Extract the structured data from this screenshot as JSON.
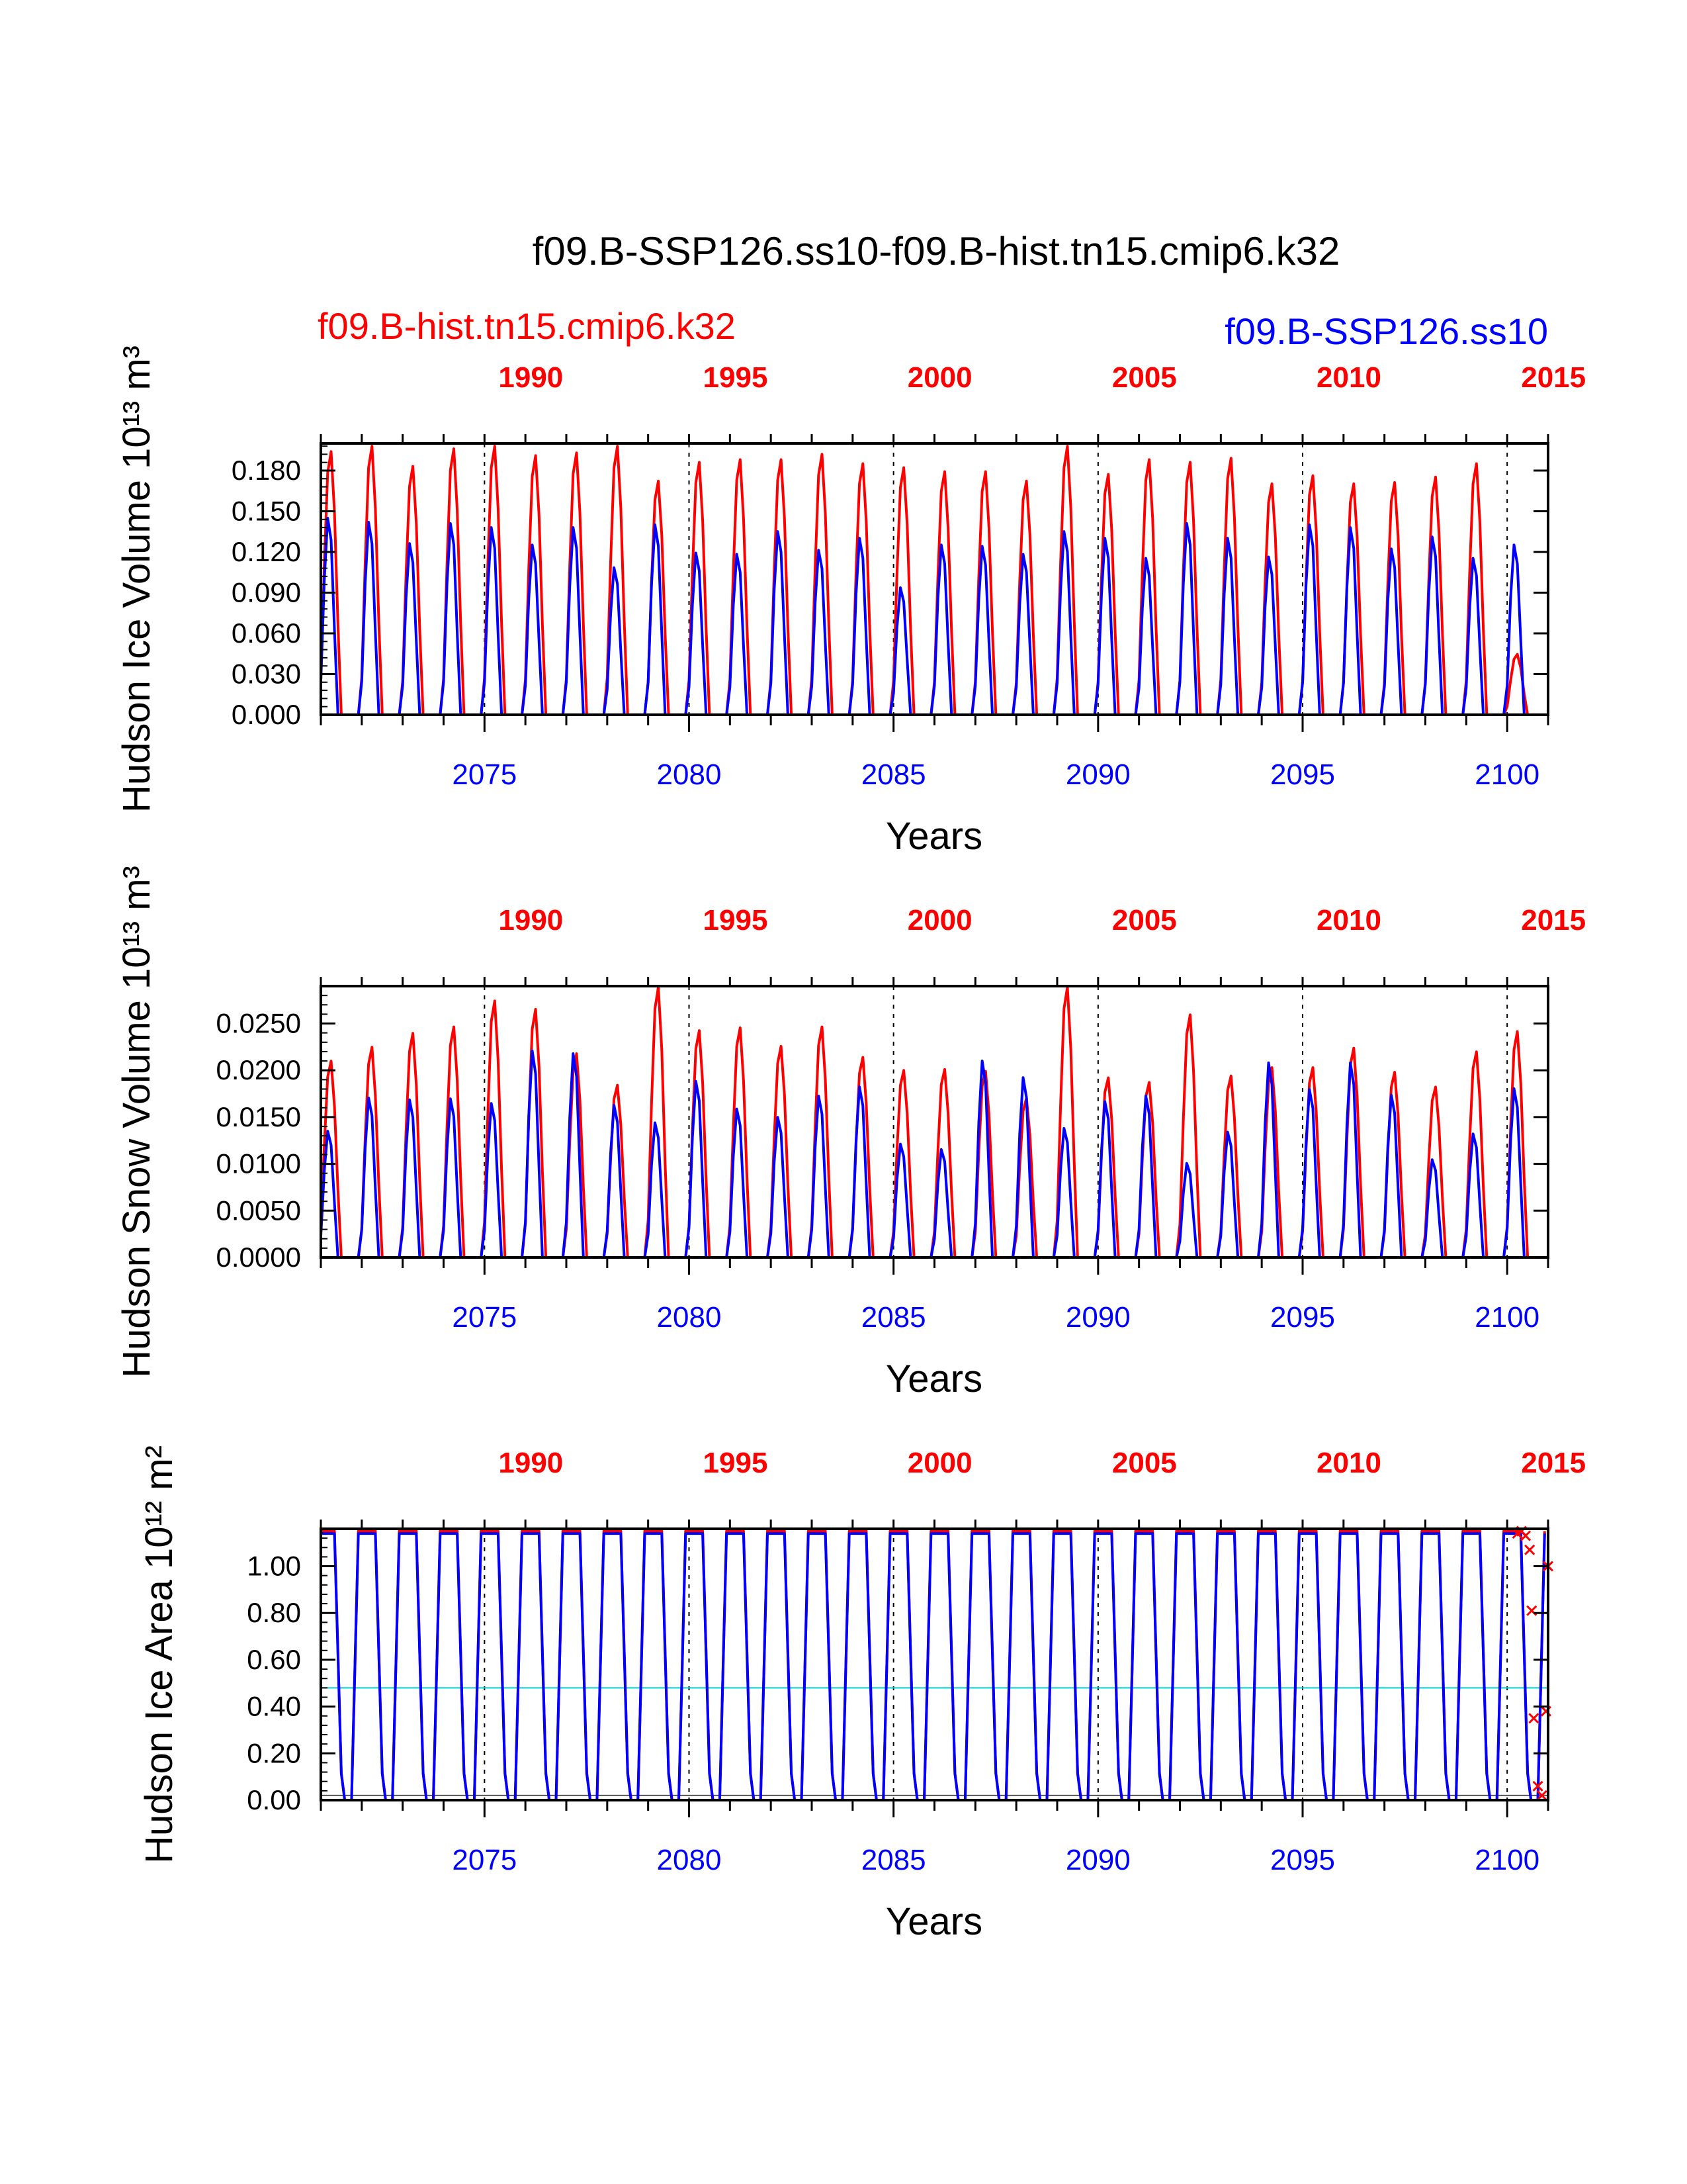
{
  "header": {
    "title": "f09.B-SSP126.ss10-f09.B-hist.tn15.cmip6.k32",
    "legend_red": "f09.B-hist.tn15.cmip6.k32",
    "legend_blue": "f09.B-SSP126.ss10"
  },
  "colors": {
    "hist": "#ff0000",
    "ssp": "#0000ff",
    "reference_line": "#00cccc",
    "axis": "#000000"
  },
  "chart_data": [
    {
      "type": "line",
      "title": "",
      "ylabel": "Hudson Ice Volume 10¹³ m³",
      "xlabel": "Years",
      "x_bottom_range": [
        2071,
        2101
      ],
      "x_bottom_ticks": [
        "2075",
        "2080",
        "2085",
        "2090",
        "2095",
        "2100"
      ],
      "x_top_ticks": [
        "1990",
        "1995",
        "2000",
        "2005",
        "2010",
        "2015"
      ],
      "ylim": [
        0,
        0.2
      ],
      "yticks": [
        "0.000",
        "0.030",
        "0.060",
        "0.090",
        "0.120",
        "0.150",
        "0.180"
      ],
      "ytick_values": [
        0,
        0.03,
        0.06,
        0.09,
        0.12,
        0.15,
        0.18
      ],
      "series": [
        {
          "name": "f09.B-hist.tn15.cmip6.k32",
          "annual_peaks": [
            0.196,
            0.2,
            0.185,
            0.198,
            0.2,
            0.193,
            0.195,
            0.2,
            0.174,
            0.188,
            0.19,
            0.19,
            0.194,
            0.187,
            0.184,
            0.181,
            0.181,
            0.174,
            0.2,
            0.179,
            0.19,
            0.188,
            0.191,
            0.172,
            0.178,
            0.172,
            0.173,
            0.177,
            0.187,
            0.045
          ]
        },
        {
          "name": "f09.B-SSP126.ss10",
          "annual_peaks": [
            0.147,
            0.144,
            0.128,
            0.143,
            0.14,
            0.127,
            0.14,
            0.11,
            0.142,
            0.121,
            0.12,
            0.137,
            0.123,
            0.132,
            0.095,
            0.127,
            0.126,
            0.12,
            0.137,
            0.132,
            0.117,
            0.143,
            0.132,
            0.118,
            0.142,
            0.14,
            0.124,
            0.133,
            0.117,
            0.127
          ]
        }
      ]
    },
    {
      "type": "line",
      "title": "",
      "ylabel": "Hudson Snow Volume 10¹³ m³",
      "xlabel": "Years",
      "x_bottom_range": [
        2071,
        2101
      ],
      "x_bottom_ticks": [
        "2075",
        "2080",
        "2085",
        "2090",
        "2095",
        "2100"
      ],
      "x_top_ticks": [
        "1990",
        "1995",
        "2000",
        "2005",
        "2010",
        "2015"
      ],
      "ylim": [
        0,
        0.029
      ],
      "yticks": [
        "0.0000",
        "0.0050",
        "0.0100",
        "0.0150",
        "0.0200",
        "0.0250"
      ],
      "ytick_values": [
        0,
        0.005,
        0.01,
        0.015,
        0.02,
        0.025
      ],
      "series": [
        {
          "name": "f09.B-hist.tn15.cmip6.k32",
          "annual_peaks": [
            0.0212,
            0.0227,
            0.0242,
            0.0249,
            0.0277,
            0.0268,
            0.022,
            0.0186,
            0.0292,
            0.0245,
            0.0248,
            0.0228,
            0.0249,
            0.0216,
            0.0202,
            0.0203,
            0.0201,
            0.0172,
            0.0292,
            0.0194,
            0.0189,
            0.0262,
            0.0196,
            0.0205,
            0.0205,
            0.0226,
            0.02,
            0.0184,
            0.0222,
            0.0244
          ]
        },
        {
          "name": "f09.B-SSP126.ss10",
          "annual_peaks": [
            0.0137,
            0.0173,
            0.0171,
            0.0172,
            0.0167,
            0.0224,
            0.0221,
            0.0165,
            0.0146,
            0.0191,
            0.0161,
            0.0152,
            0.0175,
            0.0185,
            0.0123,
            0.0117,
            0.0213,
            0.0195,
            0.014,
            0.0169,
            0.0175,
            0.0102,
            0.0136,
            0.0211,
            0.0182,
            0.0211,
            0.0176,
            0.0106,
            0.0134,
            0.0183
          ]
        }
      ]
    },
    {
      "type": "line",
      "title": "",
      "ylabel": "Hudson Ice Area 10¹² m²",
      "xlabel": "Years",
      "x_bottom_range": [
        2071,
        2101
      ],
      "x_bottom_ticks": [
        "2075",
        "2080",
        "2085",
        "2090",
        "2095",
        "2100"
      ],
      "x_top_ticks": [
        "1990",
        "1995",
        "2000",
        "2005",
        "2010",
        "2015"
      ],
      "ylim": [
        0,
        1.16
      ],
      "yticks": [
        "0.00",
        "0.20",
        "0.40",
        "0.60",
        "0.80",
        "1.00"
      ],
      "ytick_values": [
        0,
        0.2,
        0.4,
        0.6,
        0.8,
        1.0
      ],
      "reference_lines": [
        0.48,
        0.02,
        1.16
      ],
      "marker_points_x_y": [
        [
          2100.25,
          1.14
        ],
        [
          2100.35,
          1.15
        ],
        [
          2100.45,
          1.13
        ],
        [
          2100.55,
          1.07
        ],
        [
          2100.6,
          0.81
        ],
        [
          2100.65,
          0.35
        ],
        [
          2100.75,
          0.06
        ],
        [
          2100.85,
          0.02
        ],
        [
          2100.95,
          0.38
        ],
        [
          2101.0,
          1.0
        ]
      ],
      "series": [
        {
          "name": "f09.B-hist.tn15.cmip6.k32",
          "annual_peak": 1.15,
          "annual_min": 0.0
        },
        {
          "name": "f09.B-SSP126.ss10",
          "annual_peak": 1.14,
          "annual_min": 0.0
        }
      ]
    }
  ]
}
